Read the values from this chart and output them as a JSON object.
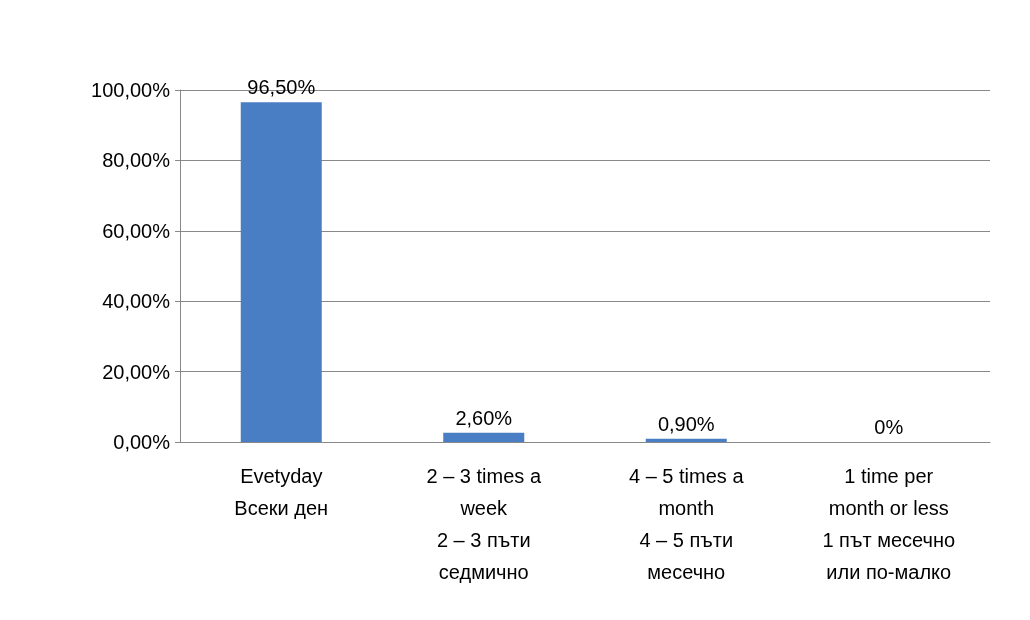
{
  "chart_data": {
    "type": "bar",
    "categories": [
      "Evetyday\nВсеки ден",
      "2 – 3 times a\nweek\n2 – 3 пъти\nседмично",
      "4 – 5 times a\nmonth\n4 – 5 пъти\nмесечно",
      "1 time per\nmonth or less\n1 път месечно\nили по-малко"
    ],
    "values": [
      96.5,
      2.6,
      0.9,
      0
    ],
    "value_labels": [
      "96,50%",
      "2,60%",
      "0,90%",
      "0%"
    ],
    "color": "#4a7ec4",
    "ylim": [
      0,
      100
    ],
    "yticks": [
      {
        "value": 0,
        "label": "0,00%"
      },
      {
        "value": 20,
        "label": "20,00%"
      },
      {
        "value": 40,
        "label": "40,00%"
      },
      {
        "value": 60,
        "label": "60,00%"
      },
      {
        "value": 80,
        "label": "80,00%"
      },
      {
        "value": 100,
        "label": "100,00%"
      }
    ],
    "grid": "y"
  }
}
